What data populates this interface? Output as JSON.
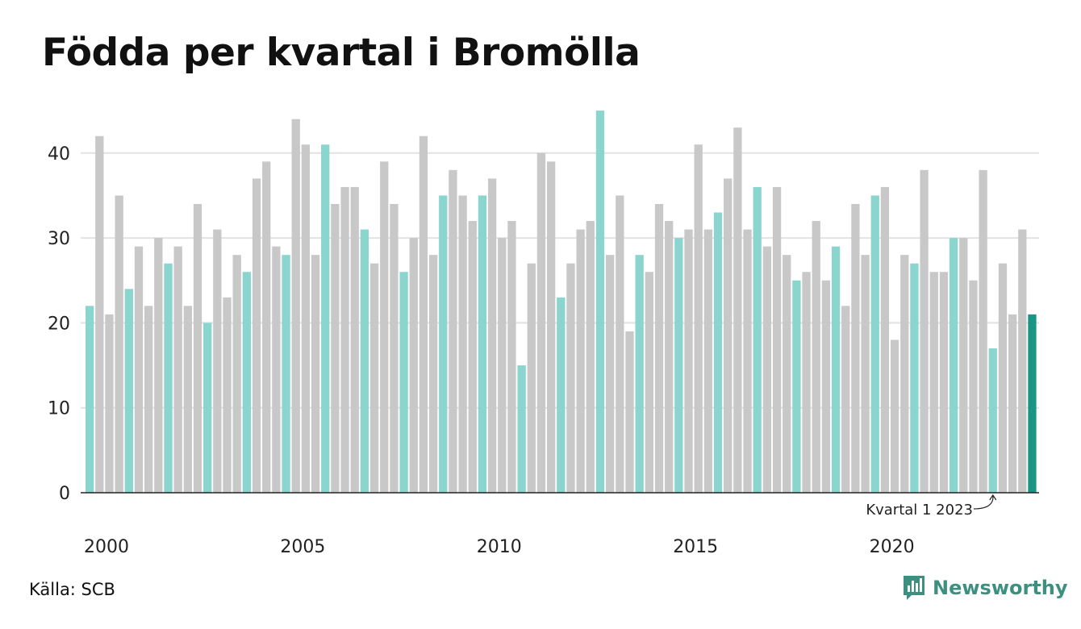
{
  "title": "Födda per kvartal i Bromölla",
  "source": "Källa: SCB",
  "brand": {
    "name": "Newsworthy",
    "icon": "newsworthy-logo-icon"
  },
  "colors": {
    "q1": "#8ad5cd",
    "other": "#c8c8c8",
    "latest": "#1a9485",
    "grid": "#e2e2e2",
    "axis": "#222222"
  },
  "chart_data": {
    "type": "bar",
    "title": "Födda per kvartal i Bromölla",
    "xlabel": "",
    "ylabel": "",
    "ylim": [
      0,
      45
    ],
    "y_ticks": [
      0,
      10,
      20,
      30,
      40
    ],
    "x_tick_labels": [
      "2000",
      "2005",
      "2010",
      "2015",
      "2020"
    ],
    "grid": true,
    "start_year": 2000,
    "values": [
      22,
      42,
      21,
      35,
      24,
      29,
      22,
      30,
      27,
      29,
      22,
      34,
      20,
      31,
      23,
      28,
      26,
      37,
      39,
      29,
      28,
      44,
      41,
      28,
      41,
      34,
      36,
      36,
      31,
      27,
      39,
      34,
      26,
      30,
      42,
      28,
      35,
      38,
      35,
      32,
      35,
      37,
      30,
      32,
      15,
      27,
      40,
      39,
      23,
      27,
      31,
      32,
      45,
      28,
      35,
      19,
      28,
      26,
      34,
      32,
      30,
      31,
      41,
      31,
      33,
      37,
      43,
      31,
      36,
      29,
      36,
      28,
      25,
      26,
      32,
      25,
      29,
      22,
      34,
      28,
      35,
      36,
      18,
      28,
      27,
      38,
      26,
      26,
      30,
      30,
      25,
      38,
      17,
      27,
      21,
      31,
      21
    ],
    "annotation": {
      "text": "Kvartal 1 2023",
      "target": "2023 Q1"
    },
    "highlight": "Kvartal 1 bars in turquoise; latest quarter (2024 Q1) in dark teal"
  }
}
